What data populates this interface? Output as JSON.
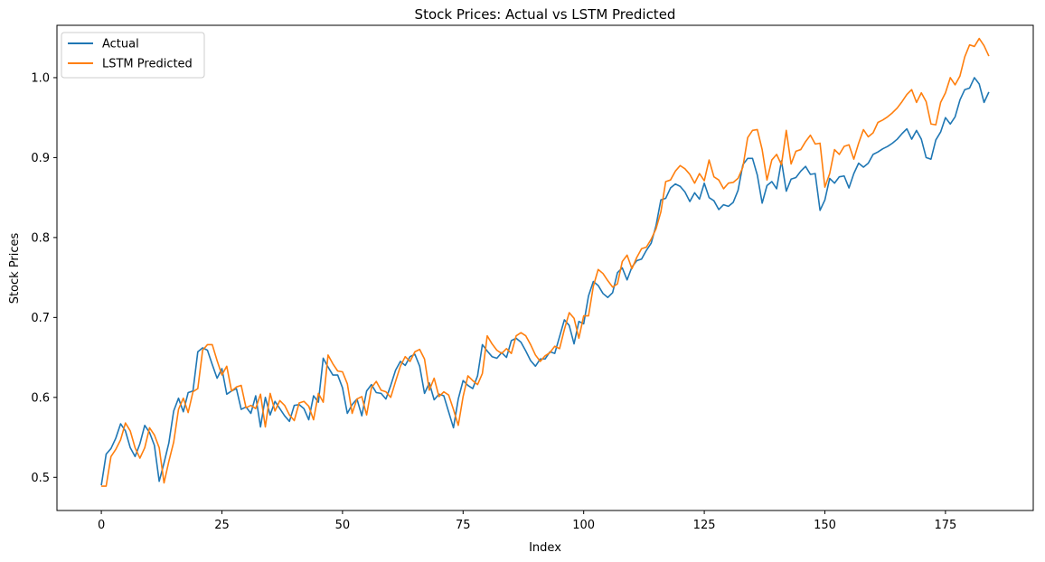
{
  "chart_data": {
    "type": "line",
    "title": "Stock Prices: Actual vs LSTM Predicted",
    "xlabel": "Index",
    "ylabel": "Stock Prices",
    "xlim": [
      -9.2,
      193.2
    ],
    "ylim": [
      0.4585,
      1.0655
    ],
    "xticks": [
      0,
      25,
      50,
      75,
      100,
      125,
      150,
      175
    ],
    "yticks": [
      0.5,
      0.6,
      0.7,
      0.8,
      0.9,
      1.0
    ],
    "xtick_labels": [
      "0",
      "25",
      "50",
      "75",
      "100",
      "125",
      "150",
      "175"
    ],
    "ytick_labels": [
      "0.5",
      "0.6",
      "0.7",
      "0.8",
      "0.9",
      "1.0"
    ],
    "grid": false,
    "legend_position": "top-left",
    "colors": {
      "Actual": "#1f77b4",
      "LSTM Predicted": "#ff7f0e"
    },
    "series": [
      {
        "name": "Actual",
        "values": [
          0.49,
          0.529,
          0.536,
          0.549,
          0.567,
          0.558,
          0.537,
          0.526,
          0.542,
          0.565,
          0.556,
          0.54,
          0.495,
          0.518,
          0.543,
          0.583,
          0.599,
          0.582,
          0.606,
          0.608,
          0.657,
          0.662,
          0.659,
          0.641,
          0.624,
          0.636,
          0.604,
          0.608,
          0.611,
          0.585,
          0.588,
          0.58,
          0.602,
          0.563,
          0.6,
          0.578,
          0.595,
          0.586,
          0.577,
          0.57,
          0.59,
          0.591,
          0.586,
          0.572,
          0.602,
          0.594,
          0.649,
          0.638,
          0.628,
          0.628,
          0.612,
          0.58,
          0.591,
          0.598,
          0.577,
          0.608,
          0.616,
          0.606,
          0.605,
          0.598,
          0.615,
          0.634,
          0.645,
          0.64,
          0.651,
          0.654,
          0.639,
          0.605,
          0.618,
          0.597,
          0.604,
          0.602,
          0.582,
          0.562,
          0.598,
          0.621,
          0.615,
          0.611,
          0.627,
          0.666,
          0.658,
          0.651,
          0.649,
          0.656,
          0.65,
          0.671,
          0.674,
          0.669,
          0.658,
          0.646,
          0.639,
          0.648,
          0.648,
          0.657,
          0.655,
          0.676,
          0.697,
          0.69,
          0.667,
          0.695,
          0.692,
          0.727,
          0.745,
          0.74,
          0.73,
          0.725,
          0.731,
          0.756,
          0.762,
          0.747,
          0.763,
          0.771,
          0.773,
          0.784,
          0.793,
          0.815,
          0.847,
          0.849,
          0.862,
          0.867,
          0.864,
          0.857,
          0.845,
          0.856,
          0.848,
          0.868,
          0.85,
          0.846,
          0.835,
          0.841,
          0.839,
          0.844,
          0.859,
          0.891,
          0.899,
          0.899,
          0.878,
          0.843,
          0.865,
          0.87,
          0.861,
          0.896,
          0.858,
          0.873,
          0.875,
          0.883,
          0.889,
          0.879,
          0.88,
          0.834,
          0.847,
          0.874,
          0.868,
          0.876,
          0.877,
          0.862,
          0.88,
          0.893,
          0.888,
          0.893,
          0.904,
          0.907,
          0.911,
          0.914,
          0.918,
          0.923,
          0.93,
          0.936,
          0.923,
          0.934,
          0.923,
          0.9,
          0.898,
          0.922,
          0.932,
          0.95,
          0.942,
          0.951,
          0.972,
          0.985,
          0.987,
          1.0,
          0.992,
          0.969,
          0.982
        ]
      },
      {
        "name": "LSTM Predicted",
        "values": [
          0.489,
          0.489,
          0.526,
          0.535,
          0.547,
          0.568,
          0.558,
          0.537,
          0.524,
          0.537,
          0.562,
          0.553,
          0.537,
          0.493,
          0.52,
          0.544,
          0.585,
          0.599,
          0.581,
          0.607,
          0.611,
          0.659,
          0.666,
          0.666,
          0.646,
          0.628,
          0.639,
          0.608,
          0.613,
          0.615,
          0.587,
          0.59,
          0.586,
          0.604,
          0.563,
          0.605,
          0.583,
          0.596,
          0.59,
          0.578,
          0.571,
          0.593,
          0.595,
          0.589,
          0.572,
          0.605,
          0.594,
          0.653,
          0.642,
          0.633,
          0.632,
          0.617,
          0.58,
          0.598,
          0.601,
          0.578,
          0.612,
          0.62,
          0.609,
          0.607,
          0.6,
          0.62,
          0.639,
          0.651,
          0.645,
          0.657,
          0.66,
          0.648,
          0.609,
          0.624,
          0.601,
          0.607,
          0.603,
          0.585,
          0.565,
          0.601,
          0.627,
          0.621,
          0.616,
          0.63,
          0.677,
          0.667,
          0.659,
          0.655,
          0.661,
          0.655,
          0.677,
          0.681,
          0.677,
          0.666,
          0.653,
          0.645,
          0.652,
          0.656,
          0.664,
          0.661,
          0.685,
          0.706,
          0.699,
          0.674,
          0.702,
          0.702,
          0.739,
          0.76,
          0.755,
          0.746,
          0.738,
          0.742,
          0.77,
          0.778,
          0.761,
          0.775,
          0.786,
          0.788,
          0.798,
          0.811,
          0.832,
          0.87,
          0.872,
          0.883,
          0.89,
          0.886,
          0.879,
          0.868,
          0.88,
          0.871,
          0.897,
          0.876,
          0.872,
          0.861,
          0.868,
          0.869,
          0.874,
          0.888,
          0.925,
          0.934,
          0.935,
          0.91,
          0.872,
          0.897,
          0.904,
          0.891,
          0.934,
          0.892,
          0.908,
          0.91,
          0.92,
          0.928,
          0.917,
          0.918,
          0.863,
          0.88,
          0.91,
          0.904,
          0.914,
          0.916,
          0.898,
          0.918,
          0.935,
          0.926,
          0.931,
          0.944,
          0.947,
          0.951,
          0.956,
          0.962,
          0.97,
          0.979,
          0.985,
          0.969,
          0.981,
          0.97,
          0.942,
          0.941,
          0.969,
          0.981,
          1.0,
          0.991,
          1.002,
          1.026,
          1.041,
          1.039,
          1.049,
          1.04,
          1.027
        ]
      }
    ]
  }
}
